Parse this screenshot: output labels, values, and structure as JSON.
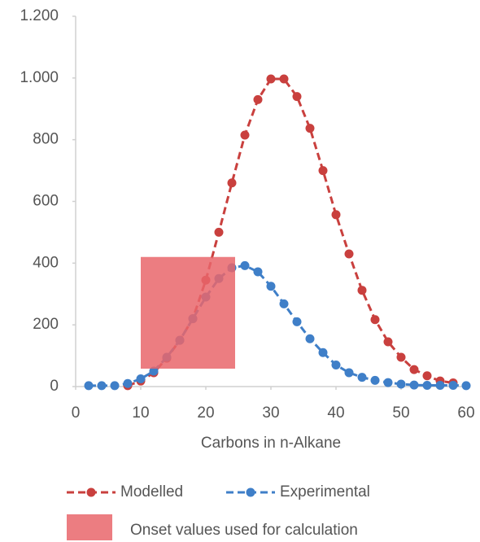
{
  "chart_data": {
    "type": "line",
    "xlabel": "Carbons in n-Alkane",
    "xlim": [
      0,
      60
    ],
    "xticks": [
      0,
      10,
      20,
      30,
      40,
      50,
      60
    ],
    "ylim": [
      0,
      1200
    ],
    "yticks": [
      0,
      200,
      400,
      600,
      800,
      {
        "value": 1000,
        "label": "1.000"
      },
      {
        "value": 1200,
        "label": "1.200"
      }
    ],
    "series": [
      {
        "name": "Modelled",
        "color": "#c9403e",
        "x": [
          8,
          10,
          12,
          14,
          16,
          18,
          20,
          22,
          24,
          26,
          28,
          30,
          32,
          34,
          36,
          38,
          40,
          42,
          44,
          46,
          48,
          50,
          52,
          54,
          56,
          58
        ],
        "values": [
          3,
          18,
          45,
          92,
          150,
          220,
          345,
          500,
          660,
          815,
          930,
          997,
          997,
          940,
          837,
          700,
          557,
          430,
          312,
          217,
          145,
          95,
          55,
          35,
          18,
          12
        ]
      },
      {
        "name": "Experimental",
        "color": "#3f7fc8",
        "x": [
          2,
          4,
          6,
          8,
          10,
          12,
          14,
          16,
          18,
          20,
          22,
          24,
          26,
          28,
          30,
          32,
          34,
          36,
          38,
          40,
          42,
          44,
          46,
          48,
          50,
          52,
          54,
          56,
          58,
          60
        ],
        "values": [
          3,
          3,
          3,
          10,
          25,
          50,
          95,
          150,
          220,
          290,
          350,
          385,
          392,
          372,
          325,
          268,
          210,
          155,
          110,
          70,
          45,
          30,
          20,
          13,
          8,
          5,
          4,
          4,
          4,
          3
        ]
      }
    ],
    "highlight": {
      "label": "Onset values used for calculation",
      "xlim": [
        10,
        24.5
      ],
      "ylim": [
        58,
        420
      ],
      "color": "#e9666b"
    }
  }
}
